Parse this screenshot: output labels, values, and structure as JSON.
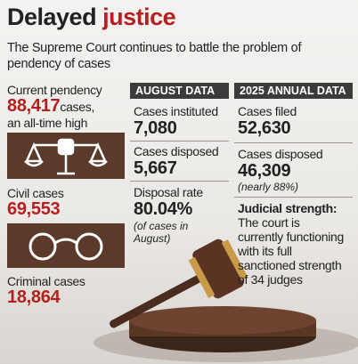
{
  "header": {
    "title": [
      "Delayed",
      "justice"
    ],
    "subtitle": "The Supreme Court continues to battle the problem of pendency of cases"
  },
  "left": {
    "pendency_label": "Current pendency",
    "pendency_value": "88,417",
    "pendency_unit": "cases,",
    "pendency_note": "an all-time high",
    "civil_label": "Civil cases",
    "civil_value": "69,553",
    "criminal_label": "Criminal cases",
    "criminal_value": "18,864"
  },
  "august": {
    "heading": "AUGUST DATA",
    "instituted_label": "Cases instituted",
    "instituted_value": "7,080",
    "disposed_label": "Cases disposed",
    "disposed_value": "5,667",
    "rate_label": "Disposal rate",
    "rate_value": "80.04%",
    "rate_note": "(of cases in August)"
  },
  "annual": {
    "heading": "2025 ANNUAL DATA",
    "filed_label": "Cases filed",
    "filed_value": "52,630",
    "disposed_label": "Cases disposed",
    "disposed_value": "46,309",
    "disposed_note": "(nearly 88%)",
    "strength_label": "Judicial strength:",
    "strength_text": "The court is currently functioning with its full sanctioned strength of 34 judges"
  }
}
